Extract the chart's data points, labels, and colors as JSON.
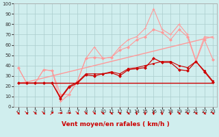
{
  "x": [
    0,
    1,
    2,
    3,
    4,
    5,
    6,
    7,
    8,
    9,
    10,
    11,
    12,
    13,
    14,
    15,
    16,
    17,
    18,
    19,
    20,
    21,
    22,
    23
  ],
  "series": [
    {
      "name": "max_gust_spike",
      "color": "#ff9999",
      "linewidth": 0.8,
      "marker": "+",
      "markersize": 3,
      "y": [
        38,
        23,
        23,
        36,
        35,
        5,
        12,
        25,
        47,
        58,
        47,
        48,
        58,
        65,
        68,
        76,
        95,
        75,
        70,
        80,
        70,
        45,
        68,
        67
      ]
    },
    {
      "name": "upper_envelope",
      "color": "#ff9999",
      "linewidth": 0.8,
      "marker": "D",
      "markersize": 2,
      "y": [
        38,
        23,
        23,
        36,
        35,
        12,
        12,
        25,
        47,
        48,
        47,
        48,
        55,
        58,
        65,
        68,
        75,
        72,
        65,
        75,
        68,
        44,
        65,
        46
      ]
    },
    {
      "name": "trend_upper",
      "color": "#ff9999",
      "linewidth": 1.0,
      "marker": null,
      "y": [
        23,
        24,
        26,
        28,
        30,
        32,
        34,
        36,
        38,
        40,
        42,
        44,
        46,
        48,
        50,
        52,
        54,
        56,
        58,
        60,
        62,
        64,
        66,
        68
      ]
    },
    {
      "name": "mean_wind",
      "color": "#cc0000",
      "linewidth": 0.9,
      "marker": "D",
      "markersize": 2,
      "y": [
        23,
        23,
        23,
        23,
        23,
        8,
        19,
        23,
        31,
        30,
        32,
        33,
        30,
        36,
        37,
        38,
        47,
        43,
        43,
        36,
        35,
        44,
        34,
        24
      ]
    },
    {
      "name": "mean_wind2",
      "color": "#cc0000",
      "linewidth": 0.8,
      "marker": "s",
      "markersize": 2,
      "y": [
        23,
        23,
        23,
        23,
        23,
        9,
        20,
        24,
        32,
        32,
        32,
        34,
        32,
        37,
        38,
        40,
        42,
        44,
        44,
        40,
        38,
        44,
        35,
        25
      ]
    },
    {
      "name": "trend_lower",
      "color": "#cc0000",
      "linewidth": 1.0,
      "marker": null,
      "y": [
        23,
        23,
        23,
        23,
        23,
        23,
        23,
        23,
        23,
        23,
        23,
        23,
        23,
        23,
        23,
        23,
        23,
        23,
        23,
        23,
        23,
        23,
        23,
        23
      ]
    }
  ],
  "wind_dirs": [
    45,
    45,
    45,
    45,
    135,
    90,
    90,
    45,
    45,
    45,
    45,
    45,
    45,
    45,
    0,
    0,
    0,
    0,
    0,
    45,
    45,
    45,
    45,
    45
  ],
  "xlabel": "Vent moyen/en rafales ( km/h )",
  "xlim": [
    -0.5,
    23.5
  ],
  "ylim": [
    0,
    100
  ],
  "yticks": [
    0,
    10,
    20,
    30,
    40,
    50,
    60,
    70,
    80,
    90,
    100
  ],
  "xticks": [
    0,
    1,
    2,
    3,
    4,
    5,
    6,
    7,
    8,
    9,
    10,
    11,
    12,
    13,
    14,
    15,
    16,
    17,
    18,
    19,
    20,
    21,
    22,
    23
  ],
  "bg_color": "#d0eeee",
  "grid_color": "#aacccc",
  "xlabel_color": "#cc0000",
  "arrow_color": "#cc0000"
}
